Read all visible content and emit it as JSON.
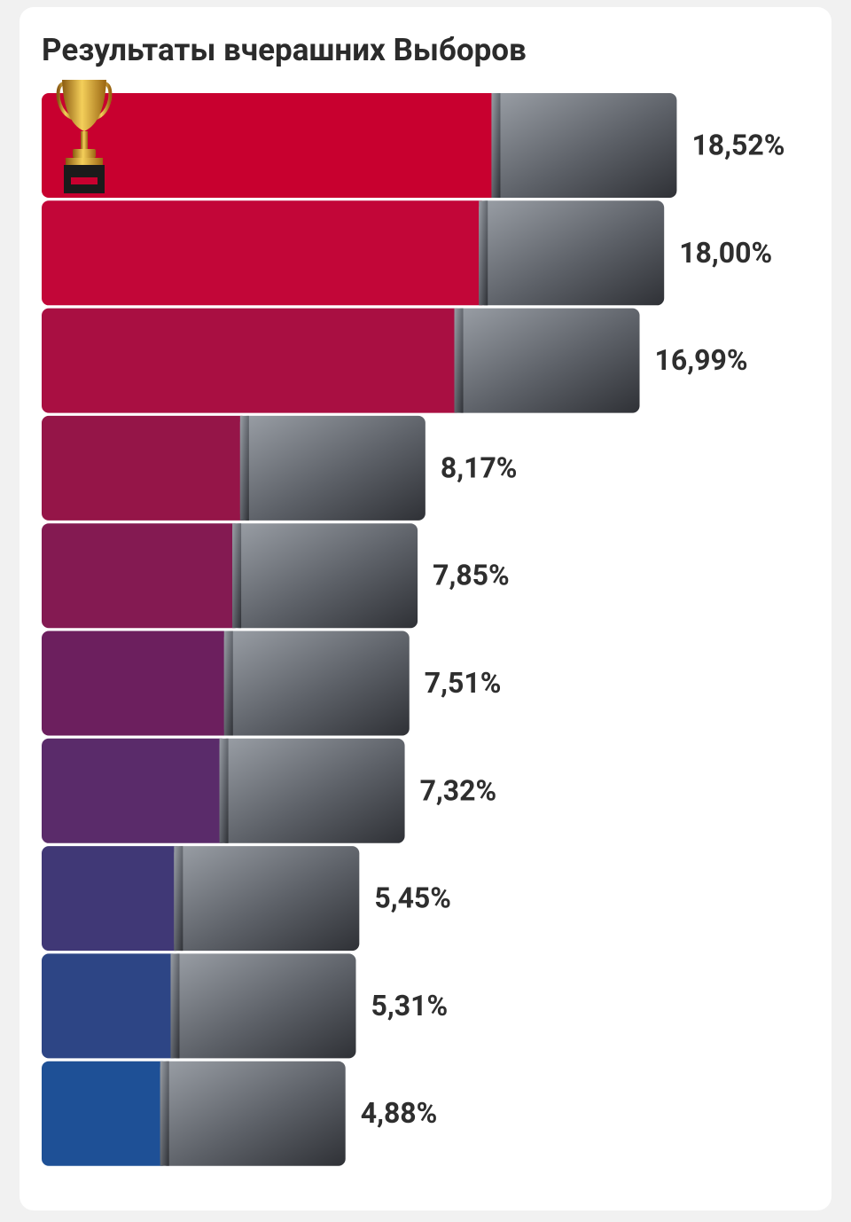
{
  "chart_data": {
    "type": "bar",
    "orientation": "horizontal",
    "title": "Результаты вчерашних Выборов",
    "values": [
      18.52,
      18.0,
      16.99,
      8.17,
      7.85,
      7.51,
      7.32,
      5.45,
      5.31,
      4.88
    ],
    "value_labels": [
      "18,52%",
      "18,00%",
      "16,99%",
      "8,17%",
      "7,85%",
      "7,51%",
      "7,32%",
      "5,45%",
      "5,31%",
      "4,88%"
    ],
    "colors": [
      "#c8002f",
      "#c20638",
      "#a90f42",
      "#951548",
      "#841a52",
      "#6c1f5e",
      "#5a2b6a",
      "#403876",
      "#2d4585",
      "#1e5096"
    ]
  }
}
